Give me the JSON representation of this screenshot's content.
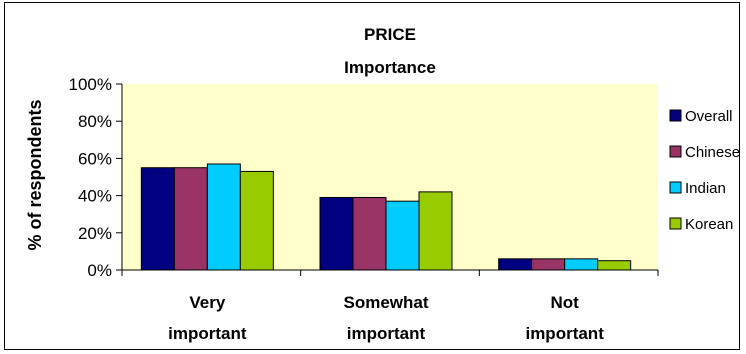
{
  "chart_data": {
    "type": "bar",
    "title_lines": [
      "PRICE",
      "Importance"
    ],
    "ylabel": "% of respondents",
    "xlabel": "",
    "categories": [
      [
        "Very",
        "important"
      ],
      [
        "Somewhat",
        "important"
      ],
      [
        "Not",
        "important"
      ]
    ],
    "ylim": [
      0,
      100
    ],
    "yticks": [
      0,
      20,
      40,
      60,
      80,
      100
    ],
    "ytick_labels": [
      "0%",
      "20%",
      "40%",
      "60%",
      "80%",
      "100%"
    ],
    "grid": false,
    "legend_position": "right",
    "plot_background": "#FFFFCC",
    "series": [
      {
        "name": "Overall",
        "color": "#000080",
        "values": [
          55,
          39,
          6
        ]
      },
      {
        "name": "Chinese",
        "color": "#993366",
        "values": [
          55,
          39,
          6
        ]
      },
      {
        "name": "Indian",
        "color": "#00CCFF",
        "values": [
          57,
          37,
          6
        ]
      },
      {
        "name": "Korean",
        "color": "#99CC00",
        "values": [
          53,
          42,
          5
        ]
      }
    ]
  }
}
